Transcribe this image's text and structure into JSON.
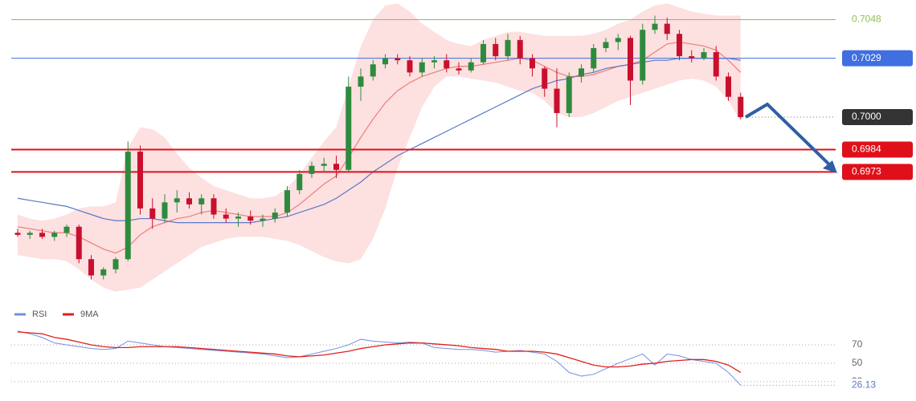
{
  "chart_data": [
    {
      "type": "candlestick",
      "ylim": [
        0.69115,
        0.70577
      ],
      "colors": {
        "up": "#2e8b3e",
        "down": "#c8102e"
      },
      "open": [
        0.6943,
        0.6942,
        0.6943,
        0.6941,
        0.6943,
        0.6946,
        0.693,
        0.6922,
        0.6925,
        0.693,
        0.6983,
        0.6955,
        0.695,
        0.6958,
        0.696,
        0.6957,
        0.696,
        0.6952,
        0.695,
        0.6951,
        0.6949,
        0.695,
        0.6953,
        0.6964,
        0.6972,
        0.6976,
        0.6977,
        0.6974,
        0.7015,
        0.702,
        0.7026,
        0.7029,
        0.7028,
        0.7022,
        0.7027,
        0.7028,
        0.7024,
        0.7023,
        0.7027,
        0.7036,
        0.703,
        0.7038,
        0.7029,
        0.7024,
        0.7014,
        0.7002,
        0.702,
        0.7024,
        0.7034,
        0.7037,
        0.7039,
        0.7018,
        0.7043,
        0.7046,
        0.7041,
        0.703,
        0.7029,
        0.7032,
        0.702,
        0.701
      ],
      "high": [
        0.6945,
        0.6944,
        0.6945,
        0.6944,
        0.6947,
        0.6947,
        0.6932,
        0.6926,
        0.6931,
        0.6988,
        0.6986,
        0.696,
        0.6962,
        0.6964,
        0.6963,
        0.6962,
        0.6962,
        0.6955,
        0.6953,
        0.6954,
        0.6952,
        0.6955,
        0.6966,
        0.6974,
        0.6978,
        0.698,
        0.6981,
        0.702,
        0.7024,
        0.7028,
        0.7031,
        0.7031,
        0.703,
        0.7029,
        0.703,
        0.7031,
        0.7027,
        0.7029,
        0.7038,
        0.7039,
        0.7041,
        0.704,
        0.7031,
        0.7025,
        0.7024,
        0.7022,
        0.7026,
        0.7036,
        0.7039,
        0.7041,
        0.704,
        0.7046,
        0.705,
        0.7049,
        0.7043,
        0.7033,
        0.7034,
        0.7035,
        0.7022,
        0.7012
      ],
      "low": [
        0.6941,
        0.694,
        0.694,
        0.6939,
        0.6941,
        0.6928,
        0.692,
        0.692,
        0.6923,
        0.6929,
        0.6952,
        0.6945,
        0.6948,
        0.6953,
        0.6955,
        0.6952,
        0.695,
        0.6948,
        0.6946,
        0.6947,
        0.6946,
        0.6948,
        0.6951,
        0.6962,
        0.697,
        0.6973,
        0.697,
        0.6973,
        0.7008,
        0.7018,
        0.7024,
        0.7026,
        0.702,
        0.702,
        0.7024,
        0.7022,
        0.7021,
        0.7022,
        0.7026,
        0.7028,
        0.7028,
        0.7026,
        0.702,
        0.701,
        0.6995,
        0.7,
        0.7017,
        0.7022,
        0.7032,
        0.7033,
        0.7006,
        0.7016,
        0.7041,
        0.7038,
        0.7028,
        0.7027,
        0.7028,
        0.7018,
        0.7008,
        0.6999
      ],
      "close": [
        0.6942,
        0.6943,
        0.6941,
        0.6943,
        0.6946,
        0.693,
        0.6922,
        0.6925,
        0.693,
        0.6983,
        0.6955,
        0.695,
        0.6958,
        0.696,
        0.6957,
        0.696,
        0.6952,
        0.695,
        0.6951,
        0.6949,
        0.695,
        0.6953,
        0.6964,
        0.6972,
        0.6976,
        0.6977,
        0.6974,
        0.7015,
        0.702,
        0.7026,
        0.7029,
        0.7028,
        0.7022,
        0.7027,
        0.7028,
        0.7024,
        0.7023,
        0.7027,
        0.7036,
        0.703,
        0.7038,
        0.7029,
        0.7024,
        0.7014,
        0.7002,
        0.702,
        0.7024,
        0.7034,
        0.7037,
        0.7039,
        0.7018,
        0.7043,
        0.7046,
        0.7041,
        0.703,
        0.7029,
        0.7032,
        0.702,
        0.701,
        0.7
      ],
      "overlays": [
        {
          "kind": "band",
          "color": "#fcd6d6",
          "upper": [
            0.6952,
            0.695,
            0.6949,
            0.695,
            0.6952,
            0.6955,
            0.6956,
            0.6956,
            0.6958,
            0.6985,
            0.6995,
            0.6994,
            0.699,
            0.6982,
            0.6975,
            0.697,
            0.6966,
            0.6964,
            0.6962,
            0.696,
            0.696,
            0.6961,
            0.6965,
            0.6972,
            0.698,
            0.6988,
            0.6995,
            0.7015,
            0.7035,
            0.7048,
            0.7055,
            0.7056,
            0.7052,
            0.7046,
            0.7042,
            0.7038,
            0.7036,
            0.7035,
            0.7038,
            0.704,
            0.7042,
            0.7042,
            0.7041,
            0.704,
            0.704,
            0.704,
            0.704,
            0.7041,
            0.7043,
            0.7046,
            0.7048,
            0.7052,
            0.7055,
            0.7056,
            0.7054,
            0.7052,
            0.7051,
            0.705,
            0.705,
            0.705
          ],
          "lower": [
            0.6932,
            0.6931,
            0.693,
            0.693,
            0.6929,
            0.6925,
            0.692,
            0.6916,
            0.6914,
            0.6915,
            0.6916,
            0.692,
            0.6924,
            0.6928,
            0.6932,
            0.6936,
            0.6938,
            0.694,
            0.6941,
            0.6941,
            0.6941,
            0.694,
            0.6939,
            0.6937,
            0.6934,
            0.6931,
            0.6929,
            0.6928,
            0.693,
            0.694,
            0.6955,
            0.6975,
            0.699,
            0.7005,
            0.7015,
            0.702,
            0.702,
            0.7019,
            0.7018,
            0.7017,
            0.7015,
            0.7013,
            0.7012,
            0.7008,
            0.7002,
            0.7,
            0.7,
            0.7002,
            0.7005,
            0.7008,
            0.701,
            0.7012,
            0.7014,
            0.7016,
            0.7018,
            0.7019,
            0.7018,
            0.7015,
            0.7008,
            0.6998
          ]
        },
        {
          "kind": "line",
          "color": "#ef7c7c",
          "values": [
            0.6946,
            0.6945,
            0.6944,
            0.6943,
            0.6943,
            0.6941,
            0.6938,
            0.6935,
            0.6933,
            0.6936,
            0.6942,
            0.6946,
            0.6948,
            0.695,
            0.6951,
            0.6953,
            0.6954,
            0.6953,
            0.6952,
            0.6951,
            0.6951,
            0.6951,
            0.6953,
            0.6957,
            0.6962,
            0.6967,
            0.6971,
            0.698,
            0.699,
            0.6999,
            0.7007,
            0.7013,
            0.7017,
            0.702,
            0.7022,
            0.7024,
            0.7025,
            0.7025,
            0.7026,
            0.7027,
            0.7028,
            0.7029,
            0.7028,
            0.7025,
            0.7022,
            0.702,
            0.702,
            0.7021,
            0.7023,
            0.7025,
            0.7026,
            0.7028,
            0.7032,
            0.7036,
            0.7037,
            0.7036,
            0.7035,
            0.7033,
            0.7028,
            0.7022
          ]
        },
        {
          "kind": "line",
          "color": "#5a78c8",
          "values": [
            0.696,
            0.6959,
            0.6958,
            0.6957,
            0.6956,
            0.6954,
            0.6952,
            0.695,
            0.6949,
            0.6949,
            0.695,
            0.695,
            0.6949,
            0.6948,
            0.6948,
            0.6948,
            0.6948,
            0.6948,
            0.6948,
            0.6948,
            0.6949,
            0.695,
            0.6951,
            0.6953,
            0.6955,
            0.6957,
            0.696,
            0.6964,
            0.6968,
            0.6973,
            0.6977,
            0.6981,
            0.6984,
            0.6987,
            0.699,
            0.6993,
            0.6996,
            0.6999,
            0.7002,
            0.7005,
            0.7008,
            0.7011,
            0.7014,
            0.7016,
            0.7018,
            0.7019,
            0.7021,
            0.7022,
            0.7024,
            0.7025,
            0.7026,
            0.7027,
            0.7028,
            0.7028,
            0.7029,
            0.7029,
            0.7029,
            0.7029,
            0.7029,
            0.7028
          ]
        }
      ],
      "levels": [
        {
          "price": 0.7048,
          "color": "#8bc34a",
          "style": "plain"
        },
        {
          "price": 0.7029,
          "color": "#3f6fe0",
          "style": "box"
        },
        {
          "price": {
            "value": 0.7,
            "label": "0.7000"
          },
          "color": "#333333",
          "style": "dotted-box"
        },
        {
          "price": 0.6984,
          "color": "#e0101a",
          "style": "thick-box"
        },
        {
          "price": 0.6973,
          "color": "#e0101a",
          "style": "thick-box"
        }
      ]
    },
    {
      "type": "line",
      "ylim": [
        9,
        92
      ],
      "yticks": [
        70,
        50,
        30
      ],
      "grid": true,
      "last_value": 26.13,
      "series": [
        {
          "name": "RSI",
          "color": "#7090e0",
          "values": [
            85,
            82,
            78,
            72,
            70,
            68,
            66,
            65,
            66,
            74,
            72,
            70,
            68,
            67,
            66,
            65,
            64,
            63,
            62,
            61,
            60,
            58,
            56,
            57,
            60,
            63,
            66,
            70,
            76,
            74,
            73,
            72,
            73,
            72,
            67,
            66,
            65,
            65,
            64,
            62,
            63,
            64,
            62,
            60,
            52,
            40,
            36,
            38,
            44,
            50,
            55,
            60,
            48,
            60,
            58,
            54,
            52,
            50,
            40,
            26.13
          ]
        },
        {
          "name": "9MA",
          "color": "#e0201c",
          "values": [
            84,
            83,
            82,
            78,
            76,
            73,
            70,
            68,
            67,
            67,
            68,
            68,
            68,
            68,
            67,
            66,
            65,
            64,
            63,
            62,
            61,
            60,
            58,
            57,
            58,
            59,
            61,
            63,
            66,
            68,
            70,
            71,
            72,
            72,
            71,
            70,
            69,
            67,
            66,
            65,
            63,
            63,
            63,
            62,
            60,
            56,
            52,
            48,
            46,
            46,
            47,
            49,
            50,
            52,
            53,
            54,
            54,
            52,
            48,
            40
          ]
        }
      ]
    }
  ]
}
